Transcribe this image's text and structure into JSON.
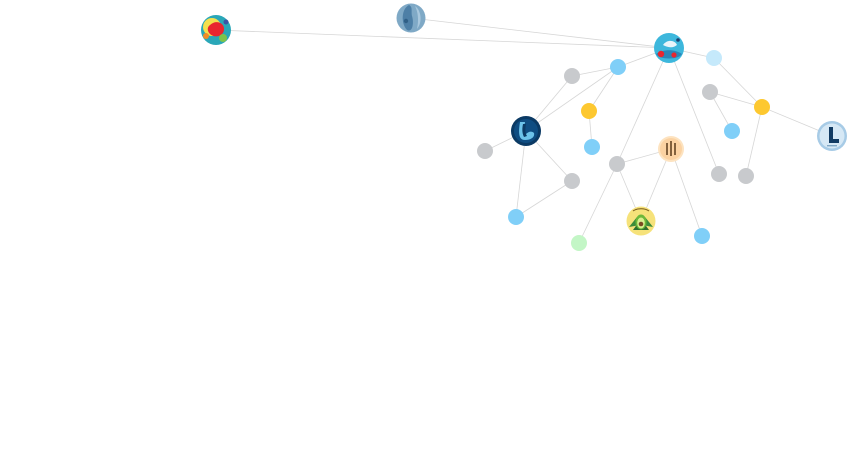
{
  "graph": {
    "edge_color": "#d6d6d6",
    "node_colors": {
      "gray": "#c8cacd",
      "blue": "#80cff8",
      "light_blue": "#c5e9fb",
      "yellow": "#fdc830",
      "green": "#c3f6c6"
    },
    "nodes": [
      {
        "id": "n1",
        "kind": "image",
        "icon": "colorful-blob-avatar-icon"
      },
      {
        "id": "n2",
        "kind": "image",
        "icon": "blue-face-avatar-icon"
      },
      {
        "id": "n3",
        "kind": "image",
        "icon": "blue-bird-avatar-icon"
      },
      {
        "id": "n4",
        "kind": "dot",
        "color": "light_blue"
      },
      {
        "id": "n5",
        "kind": "dot",
        "color": "blue"
      },
      {
        "id": "n6",
        "kind": "dot",
        "color": "gray"
      },
      {
        "id": "n7",
        "kind": "dot",
        "color": "gray"
      },
      {
        "id": "n8",
        "kind": "dot",
        "color": "yellow"
      },
      {
        "id": "n9",
        "kind": "dot",
        "color": "yellow"
      },
      {
        "id": "n10",
        "kind": "image",
        "icon": "l-logo-light-avatar-icon"
      },
      {
        "id": "n11",
        "kind": "image",
        "icon": "l-logo-dark-avatar-icon"
      },
      {
        "id": "n12",
        "kind": "dot",
        "color": "gray"
      },
      {
        "id": "n13",
        "kind": "dot",
        "color": "blue"
      },
      {
        "id": "n14",
        "kind": "dot",
        "color": "blue"
      },
      {
        "id": "n15",
        "kind": "image",
        "icon": "striped-peach-avatar-icon"
      },
      {
        "id": "n16",
        "kind": "dot",
        "color": "gray"
      },
      {
        "id": "n17",
        "kind": "dot",
        "color": "gray"
      },
      {
        "id": "n18",
        "kind": "dot",
        "color": "gray"
      },
      {
        "id": "n19",
        "kind": "dot",
        "color": "gray"
      },
      {
        "id": "n20",
        "kind": "dot",
        "color": "blue"
      },
      {
        "id": "n21",
        "kind": "image",
        "icon": "avocado-badge-avatar-icon"
      },
      {
        "id": "n22",
        "kind": "dot",
        "color": "green"
      },
      {
        "id": "n23",
        "kind": "dot",
        "color": "blue"
      }
    ],
    "edges": [
      [
        "n1",
        "n3"
      ],
      [
        "n2",
        "n3"
      ],
      [
        "n3",
        "n5"
      ],
      [
        "n3",
        "n4"
      ],
      [
        "n3",
        "n16"
      ],
      [
        "n3",
        "n19"
      ],
      [
        "n5",
        "n6"
      ],
      [
        "n5",
        "n11"
      ],
      [
        "n6",
        "n11"
      ],
      [
        "n5",
        "n8"
      ],
      [
        "n8",
        "n14"
      ],
      [
        "n4",
        "n9"
      ],
      [
        "n7",
        "n9"
      ],
      [
        "n9",
        "n10"
      ],
      [
        "n9",
        "n17"
      ],
      [
        "n7",
        "n13"
      ],
      [
        "n11",
        "n12"
      ],
      [
        "n11",
        "n18"
      ],
      [
        "n11",
        "n20"
      ],
      [
        "n18",
        "n20"
      ],
      [
        "n16",
        "n15"
      ],
      [
        "n16",
        "n21"
      ],
      [
        "n16",
        "n22"
      ],
      [
        "n15",
        "n21"
      ],
      [
        "n15",
        "n23"
      ]
    ]
  }
}
